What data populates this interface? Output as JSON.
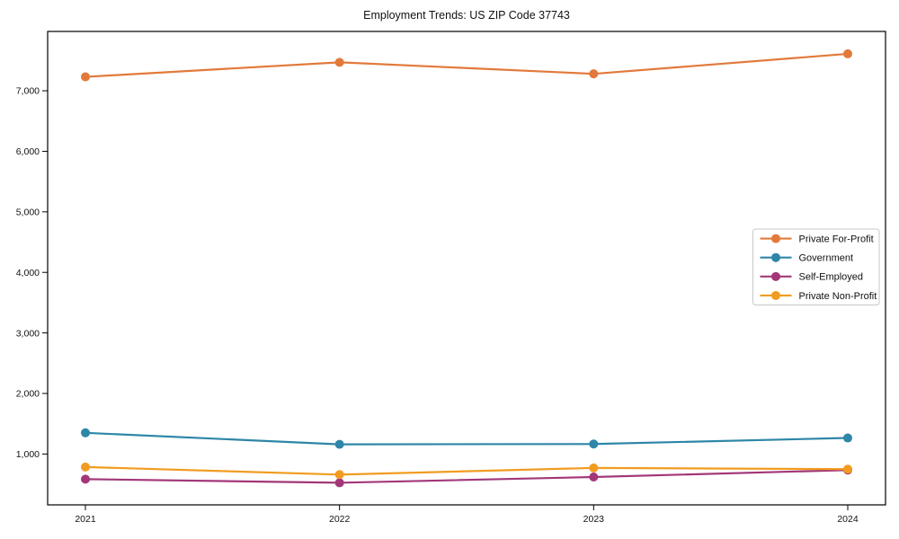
{
  "page": {
    "background": "#ffffff",
    "text_color": "#111111"
  },
  "chart_data": {
    "type": "line",
    "title": "Employment Trends: US ZIP Code 37743",
    "xlabel": "",
    "ylabel": "",
    "x": [
      2021,
      2022,
      2023,
      2024
    ],
    "x_tick_labels": [
      "2021",
      "2022",
      "2023",
      "2024"
    ],
    "yticks": [
      1000,
      2000,
      3000,
      4000,
      5000,
      6000,
      7000
    ],
    "ytick_labels": [
      "1,000",
      "2,000",
      "3,000",
      "4,000",
      "5,000",
      "6,000",
      "7,000"
    ],
    "ylim": [
      160,
      7980
    ],
    "grid": false,
    "legend_position": "center-right",
    "frame_color": "#000000",
    "series": [
      {
        "name": "Private For-Profit",
        "color": "#E2793B",
        "values": [
          7230,
          7470,
          7280,
          7610
        ]
      },
      {
        "name": "Government",
        "color": "#2E86A8",
        "values": [
          1350,
          1160,
          1165,
          1265
        ]
      },
      {
        "name": "Self-Employed",
        "color": "#A23778",
        "values": [
          585,
          525,
          620,
          735
        ]
      },
      {
        "name": "Private Non-Profit",
        "color": "#F19C21",
        "values": [
          785,
          660,
          770,
          750
        ]
      }
    ]
  }
}
